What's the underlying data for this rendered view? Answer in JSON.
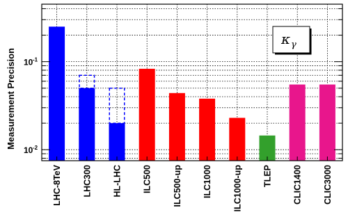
{
  "chart_data": {
    "type": "bar",
    "title": "",
    "xlabel": "",
    "ylabel": "Measurement Precision",
    "yscale": "log",
    "ylim": [
      0.0075,
      0.45
    ],
    "grid": true,
    "legend": {
      "placement": "top-right",
      "symbol": "κ",
      "subscript": "γ"
    },
    "categories": [
      "LHC-8TeV",
      "LHC300",
      "HL-LHC",
      "ILC500",
      "ILC500-up",
      "ILC1000",
      "ILC1000-up",
      "TLEP",
      "CLIC1400",
      "CLIC3000"
    ],
    "values": [
      0.25,
      0.05,
      0.02,
      0.083,
      0.044,
      0.038,
      0.023,
      0.0145,
      0.055,
      0.055
    ],
    "upper_dashed": [
      null,
      0.07,
      0.05,
      null,
      null,
      null,
      null,
      null,
      null,
      null
    ],
    "colors": [
      "#0000ff",
      "#0000ff",
      "#0000ff",
      "#ff0000",
      "#ff0000",
      "#ff0000",
      "#ff0000",
      "#33a02c",
      "#e8168c",
      "#e8168c"
    ],
    "y_ticks": [
      {
        "value": 0.1,
        "base": "10",
        "exp": "-1"
      },
      {
        "value": 0.01,
        "base": "10",
        "exp": "-2"
      }
    ]
  }
}
